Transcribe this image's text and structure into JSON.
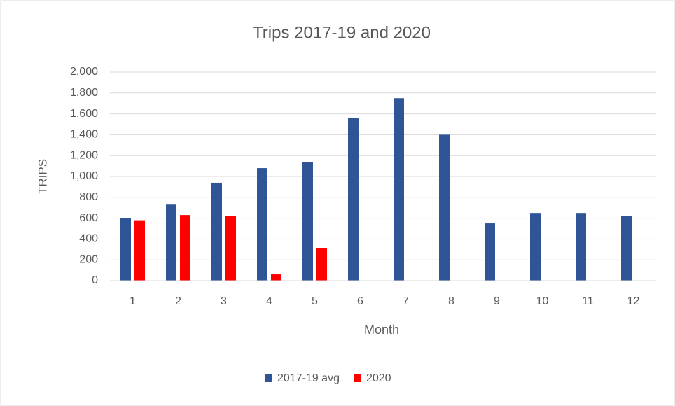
{
  "chart_data": {
    "type": "bar",
    "title": "Trips 2017-19 and 2020",
    "x_label": "Month",
    "y_label": "TRIPS",
    "categories": [
      "1",
      "2",
      "3",
      "4",
      "5",
      "6",
      "7",
      "8",
      "9",
      "10",
      "11",
      "12"
    ],
    "series": [
      {
        "name": "2017-19 avg",
        "color": "#2f5597",
        "values": [
          600,
          730,
          940,
          1080,
          1140,
          1560,
          1750,
          1400,
          550,
          650,
          650,
          620
        ]
      },
      {
        "name": "2020",
        "color": "#ff0000",
        "values": [
          580,
          630,
          620,
          60,
          310,
          null,
          null,
          null,
          null,
          null,
          null,
          null
        ]
      }
    ],
    "ylim": [
      0,
      2000
    ],
    "yticks": [
      0,
      200,
      400,
      600,
      800,
      {
        "value": 1000,
        "label": "1,000"
      },
      {
        "value": 1200,
        "label": "1,200"
      },
      {
        "value": 1400,
        "label": "1,400"
      },
      {
        "value": 1600,
        "label": "1,600"
      },
      {
        "value": 1800,
        "label": "1,800"
      },
      {
        "value": 2000,
        "label": "2,000"
      }
    ],
    "grid": true,
    "legend": "bottom"
  }
}
